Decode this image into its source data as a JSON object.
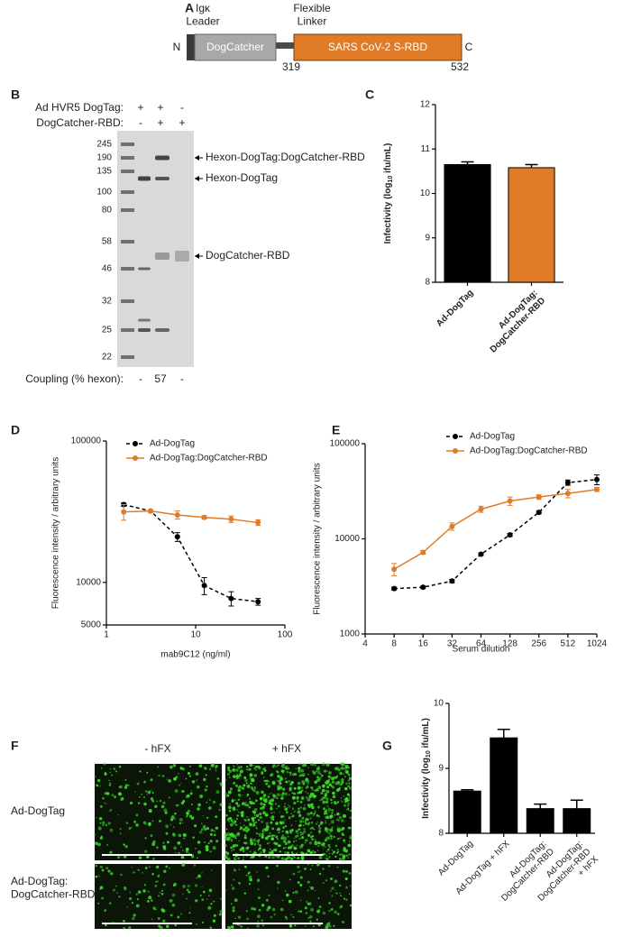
{
  "panel_labels": [
    "A",
    "B",
    "C",
    "D",
    "E",
    "F",
    "G"
  ],
  "construct": {
    "leader": "Igκ\nLeader",
    "linker": "Flexible\nLinker",
    "n_terminus": "N",
    "c_terminus": "C",
    "domain_1": "DogCatcher",
    "domain_2": "SARS CoV-2 S-RBD",
    "start": 319,
    "end": 532
  },
  "gel": {
    "row_labels": [
      "Ad HVR5 DogTag:",
      "DogCatcher-RBD:",
      "Coupling (% hexon):"
    ],
    "rows": [
      [
        "+",
        "+",
        "-"
      ],
      [
        "-",
        "+",
        "+"
      ],
      [
        "-",
        57,
        "-"
      ]
    ],
    "ladder": [
      245,
      190,
      135,
      100,
      80,
      58,
      46,
      32,
      25,
      22
    ],
    "bands": [
      "Hexon-DogTag:DogCatcher-RBD",
      "Hexon-DogTag",
      "DogCatcher-RBD"
    ]
  },
  "microscopy": {
    "columns": [
      "- hFX",
      "+ hFX"
    ],
    "rows": [
      "Ad-DogTag",
      "Ad-DogTag:\nDogCatcher-RBD"
    ]
  },
  "chart_data": [
    {
      "type": "bar",
      "ylabel": [
        "Infectivity (log",
        "10",
        " ifu/mL)"
      ],
      "categories": [
        "Ad-DogTag",
        "Ad-DogTag:\nDogCatcher-RBD"
      ],
      "values": [
        10.65,
        10.58
      ],
      "errors": [
        0.06,
        0.07
      ],
      "colors": [
        "#000000",
        "#e07b28"
      ],
      "ylim": [
        8,
        12
      ],
      "yticks": [
        8,
        9,
        10,
        11,
        12
      ]
    },
    {
      "type": "line",
      "xlabel": "mab9C12 (ng/ml)",
      "ylabel": "Fluorescence intensity / arbitrary units",
      "xscale": "log",
      "yscale": "log",
      "x": [
        1.5625,
        3.125,
        6.25,
        12.5,
        25,
        50
      ],
      "xlim": [
        1,
        100
      ],
      "xticks": [
        1,
        10,
        100
      ],
      "ylim": [
        5000,
        100000
      ],
      "yticks": [
        5000,
        10000,
        100000
      ],
      "legend": "top",
      "series": [
        {
          "name": "Ad-DogTag",
          "color": "#000000",
          "style": "dashed",
          "values": [
            35500,
            32000,
            21000,
            9500,
            7700,
            7300
          ],
          "errors": [
            1000,
            500,
            1500,
            1300,
            900,
            400
          ]
        },
        {
          "name": "Ad-DogTag:DogCatcher-RBD",
          "color": "#e07b28",
          "style": "solid",
          "values": [
            31500,
            32000,
            30000,
            28800,
            28000,
            26500
          ],
          "errors": [
            4000,
            500,
            2000,
            800,
            1500,
            1200
          ]
        }
      ]
    },
    {
      "type": "line",
      "xlabel": "Serum dilution",
      "ylabel": "Fluorescence intensity / arbitrary units",
      "xscale": "log",
      "yscale": "log",
      "x": [
        8,
        16,
        32,
        64,
        128,
        256,
        512,
        1024
      ],
      "xlim": [
        4,
        1024
      ],
      "xticks": [
        4,
        8,
        16,
        32,
        64,
        128,
        256,
        512,
        1024
      ],
      "ylim": [
        1000,
        100000
      ],
      "yticks": [
        1000,
        10000,
        100000
      ],
      "legend": "top",
      "series": [
        {
          "name": "Ad-DogTag",
          "color": "#000000",
          "style": "dashed",
          "values": [
            3000,
            3100,
            3600,
            6900,
            11000,
            19000,
            39000,
            42000
          ],
          "errors": [
            100,
            100,
            150,
            200,
            400,
            700,
            2500,
            5000
          ]
        },
        {
          "name": "Ad-DogTag:DogCatcher-RBD",
          "color": "#e07b28",
          "style": "solid",
          "values": [
            4800,
            7200,
            13500,
            20500,
            25000,
            27500,
            30000,
            33000
          ],
          "errors": [
            700,
            300,
            1200,
            1500,
            2500,
            1500,
            3000,
            1500
          ]
        }
      ]
    },
    {
      "type": "bar",
      "ylabel": [
        "Infectivity (log",
        "10",
        " ifu/mL)"
      ],
      "categories": [
        "Ad-DogTag",
        "Ad-DogTag + hFX",
        "Ad-DogTag:\nDogCatcher-RBD",
        "Ad-DogTag:\nDogCatcher-RBD\n+ hFX"
      ],
      "values": [
        8.65,
        9.47,
        8.38,
        8.38
      ],
      "errors": [
        0.02,
        0.13,
        0.07,
        0.13
      ],
      "colors": [
        "#000000",
        "#000000",
        "#000000",
        "#000000"
      ],
      "ylim": [
        8,
        10
      ],
      "yticks": [
        8,
        9,
        10
      ]
    }
  ]
}
